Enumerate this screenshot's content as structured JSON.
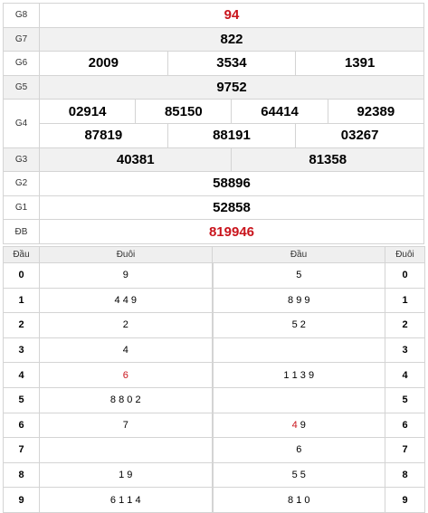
{
  "results": {
    "g8": {
      "label": "G8",
      "value": "94"
    },
    "g7": {
      "label": "G7",
      "value": "822"
    },
    "g6": {
      "label": "G6",
      "values": [
        "2009",
        "3534",
        "1391"
      ]
    },
    "g5": {
      "label": "G5",
      "value": "9752"
    },
    "g4": {
      "label": "G4",
      "row1": [
        "02914",
        "85150",
        "64414",
        "92389"
      ],
      "row2": [
        "87819",
        "88191",
        "03267"
      ]
    },
    "g3": {
      "label": "G3",
      "values": [
        "40381",
        "81358"
      ]
    },
    "g2": {
      "label": "G2",
      "value": "58896"
    },
    "g1": {
      "label": "G1",
      "value": "52858"
    },
    "db": {
      "label": "ĐB",
      "value": "819946"
    }
  },
  "loto": {
    "headers": {
      "dau_left": "Đầu",
      "duoi_left": "Đuôi",
      "dau_right": "Đầu",
      "duoi_right": "Đuôi"
    },
    "rows": [
      {
        "num": "0",
        "duoi": "9",
        "dau": "5",
        "duoi_red": "",
        "dau_red": ""
      },
      {
        "num": "1",
        "duoi": "4 4 9",
        "dau": "8 9 9",
        "duoi_red": "",
        "dau_red": ""
      },
      {
        "num": "2",
        "duoi": "2",
        "dau": "5 2",
        "duoi_red": "",
        "dau_red": ""
      },
      {
        "num": "3",
        "duoi": "4",
        "dau": "",
        "duoi_red": "",
        "dau_red": ""
      },
      {
        "num": "4",
        "duoi": "",
        "dau": "1 1 3 9",
        "duoi_red": "6",
        "dau_red": ""
      },
      {
        "num": "5",
        "duoi": "8 8 0 2",
        "dau": "",
        "duoi_red": "",
        "dau_red": ""
      },
      {
        "num": "6",
        "duoi": "7",
        "dau": " 9",
        "duoi_red": "",
        "dau_red": "4"
      },
      {
        "num": "7",
        "duoi": "",
        "dau": "6",
        "duoi_red": "",
        "dau_red": ""
      },
      {
        "num": "8",
        "duoi": "1 9",
        "dau": "5 5",
        "duoi_red": "",
        "dau_red": ""
      },
      {
        "num": "9",
        "duoi": "6 1 1 4",
        "dau": "8 1 0",
        "duoi_red": "",
        "dau_red": ""
      }
    ]
  }
}
